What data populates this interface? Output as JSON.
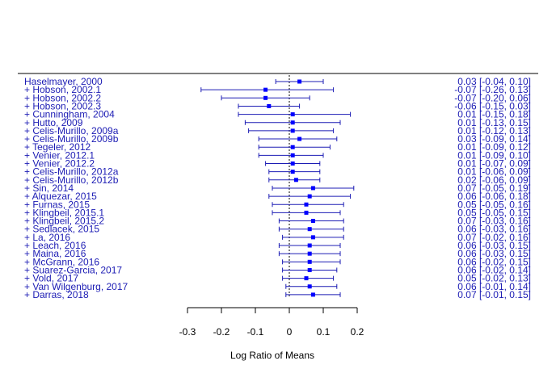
{
  "chart_data": {
    "type": "forest",
    "xlabel": "Log Ratio of Means",
    "xticks": [
      "-0.3",
      "-0.2",
      "-0.1",
      "0",
      "0.1",
      "0.2"
    ],
    "xtick_values": [
      -0.3,
      -0.2,
      -0.1,
      0,
      0.1,
      0.2
    ],
    "xlim": [
      -0.3,
      0.2
    ],
    "reference_line": 0,
    "color": "#1c1cb4",
    "marker_color": "#0000ff",
    "studies": [
      {
        "label": "Haselmayer, 2000",
        "est": 0.03,
        "lo": -0.04,
        "hi": 0.1,
        "ci_text": "0.03 [-0.04, 0.10]"
      },
      {
        "label": "+ Hobson, 2002.1",
        "est": -0.07,
        "lo": -0.26,
        "hi": 0.13,
        "ci_text": "-0.07 [-0.26, 0.13]"
      },
      {
        "label": "+ Hobson, 2002.2",
        "est": -0.07,
        "lo": -0.2,
        "hi": 0.06,
        "ci_text": "-0.07 [-0.20, 0.06]"
      },
      {
        "label": "+ Hobson, 2002.3",
        "est": -0.06,
        "lo": -0.15,
        "hi": 0.03,
        "ci_text": "-0.06 [-0.15, 0.03]"
      },
      {
        "label": "+ Cunningham, 2004",
        "est": 0.01,
        "lo": -0.15,
        "hi": 0.18,
        "ci_text": "0.01 [-0.15, 0.18]"
      },
      {
        "label": "+ Hutto, 2009",
        "est": 0.01,
        "lo": -0.13,
        "hi": 0.15,
        "ci_text": "0.01 [-0.13, 0.15]"
      },
      {
        "label": "+ Celis-Murillo, 2009a",
        "est": 0.01,
        "lo": -0.12,
        "hi": 0.13,
        "ci_text": "0.01 [-0.12, 0.13]"
      },
      {
        "label": "+ Celis-Murillo, 2009b",
        "est": 0.03,
        "lo": -0.09,
        "hi": 0.14,
        "ci_text": "0.03 [-0.09, 0.14]"
      },
      {
        "label": "+ Tegeler, 2012",
        "est": 0.01,
        "lo": -0.09,
        "hi": 0.12,
        "ci_text": "0.01 [-0.09, 0.12]"
      },
      {
        "label": "+ Venier, 2012.1",
        "est": 0.01,
        "lo": -0.09,
        "hi": 0.1,
        "ci_text": "0.01 [-0.09, 0.10]"
      },
      {
        "label": "+ Venier, 2012.2",
        "est": 0.01,
        "lo": -0.07,
        "hi": 0.09,
        "ci_text": "0.01 [-0.07, 0.09]"
      },
      {
        "label": "+ Celis-Murillo, 2012a",
        "est": 0.01,
        "lo": -0.06,
        "hi": 0.09,
        "ci_text": "0.01 [-0.06, 0.09]"
      },
      {
        "label": "+ Celis-Murillo, 2012b",
        "est": 0.02,
        "lo": -0.06,
        "hi": 0.09,
        "ci_text": "0.02 [-0.06, 0.09]"
      },
      {
        "label": "+ Sin, 2014",
        "est": 0.07,
        "lo": -0.05,
        "hi": 0.19,
        "ci_text": "0.07 [-0.05, 0.19]"
      },
      {
        "label": "+ Alquezar, 2015",
        "est": 0.06,
        "lo": -0.06,
        "hi": 0.18,
        "ci_text": "0.06 [-0.06, 0.18]"
      },
      {
        "label": "+ Furnas, 2015",
        "est": 0.05,
        "lo": -0.05,
        "hi": 0.16,
        "ci_text": "0.05 [-0.05, 0.16]"
      },
      {
        "label": "+ Klingbeil, 2015.1",
        "est": 0.05,
        "lo": -0.05,
        "hi": 0.15,
        "ci_text": "0.05 [-0.05, 0.15]"
      },
      {
        "label": "+ Klingbeil, 2015.2",
        "est": 0.07,
        "lo": -0.03,
        "hi": 0.16,
        "ci_text": "0.07 [-0.03, 0.16]"
      },
      {
        "label": "+ Sedlacek, 2015",
        "est": 0.06,
        "lo": -0.03,
        "hi": 0.16,
        "ci_text": "0.06 [-0.03, 0.16]"
      },
      {
        "label": "+ La, 2016",
        "est": 0.07,
        "lo": -0.02,
        "hi": 0.16,
        "ci_text": "0.07 [-0.02, 0.16]"
      },
      {
        "label": "+ Leach, 2016",
        "est": 0.06,
        "lo": -0.03,
        "hi": 0.15,
        "ci_text": "0.06 [-0.03, 0.15]"
      },
      {
        "label": "+ Maina, 2016",
        "est": 0.06,
        "lo": -0.03,
        "hi": 0.15,
        "ci_text": "0.06 [-0.03, 0.15]"
      },
      {
        "label": "+ McGrann, 2016",
        "est": 0.06,
        "lo": -0.02,
        "hi": 0.15,
        "ci_text": "0.06 [-0.02, 0.15]"
      },
      {
        "label": "+ Suarez-Garcia, 2017",
        "est": 0.06,
        "lo": -0.02,
        "hi": 0.14,
        "ci_text": "0.06 [-0.02, 0.14]"
      },
      {
        "label": "+ Vold, 2017",
        "est": 0.05,
        "lo": -0.02,
        "hi": 0.13,
        "ci_text": "0.05 [-0.02, 0.13]"
      },
      {
        "label": "+ Van Wilgenburg, 2017",
        "est": 0.06,
        "lo": -0.01,
        "hi": 0.14,
        "ci_text": "0.06 [-0.01, 0.14]"
      },
      {
        "label": "+ Darras, 2018",
        "est": 0.07,
        "lo": -0.01,
        "hi": 0.15,
        "ci_text": "0.07 [-0.01, 0.15]"
      }
    ]
  }
}
